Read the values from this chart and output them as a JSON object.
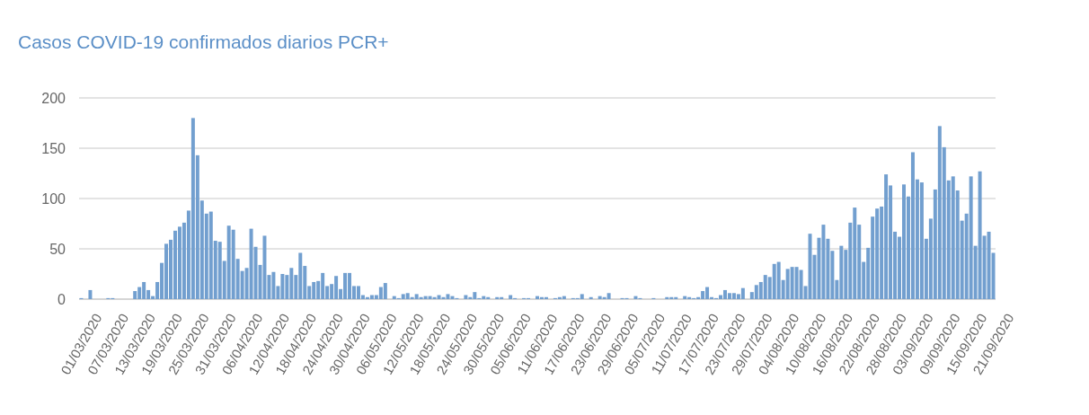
{
  "chart_data": {
    "type": "bar",
    "title": "Casos COVID-19 confirmados diarios PCR+",
    "categories": [
      "01/03/2020",
      null,
      null,
      null,
      null,
      null,
      "07/03/2020",
      null,
      null,
      null,
      null,
      null,
      "13/03/2020",
      null,
      null,
      null,
      null,
      null,
      "19/03/2020",
      null,
      null,
      null,
      null,
      null,
      "25/03/2020",
      null,
      null,
      null,
      null,
      null,
      "31/03/2020",
      null,
      null,
      null,
      null,
      null,
      "06/04/2020",
      null,
      null,
      null,
      null,
      null,
      "12/04/2020",
      null,
      null,
      null,
      null,
      null,
      "18/04/2020",
      null,
      null,
      null,
      null,
      null,
      "24/04/2020",
      null,
      null,
      null,
      null,
      null,
      "30/04/2020",
      null,
      null,
      null,
      null,
      null,
      "06/05/2020",
      null,
      null,
      null,
      null,
      null,
      "12/05/2020",
      null,
      null,
      null,
      null,
      null,
      "18/05/2020",
      null,
      null,
      null,
      null,
      null,
      "24/05/2020",
      null,
      null,
      null,
      null,
      null,
      "30/05/2020",
      null,
      null,
      null,
      null,
      null,
      "05/06/2020",
      null,
      null,
      null,
      null,
      null,
      "11/06/2020",
      null,
      null,
      null,
      null,
      null,
      "17/06/2020",
      null,
      null,
      null,
      null,
      null,
      "23/06/2020",
      null,
      null,
      null,
      null,
      null,
      "29/06/2020",
      null,
      null,
      null,
      null,
      null,
      "05/07/2020",
      null,
      null,
      null,
      null,
      null,
      "11/07/2020",
      null,
      null,
      null,
      null,
      null,
      "17/07/2020",
      null,
      null,
      null,
      null,
      null,
      "23/07/2020",
      null,
      null,
      null,
      null,
      null,
      "29/07/2020",
      null,
      null,
      null,
      null,
      null,
      "04/08/2020",
      null,
      null,
      null,
      null,
      null,
      "10/08/2020",
      null,
      null,
      null,
      null,
      null,
      "16/08/2020",
      null,
      null,
      null,
      null,
      null,
      "22/08/2020",
      null,
      null,
      null,
      null,
      null,
      "28/08/2020",
      null,
      null,
      null,
      null,
      null,
      "03/09/2020",
      null,
      null,
      null,
      null,
      null,
      "09/09/2020",
      null,
      null,
      null,
      null,
      null,
      "15/09/2020",
      null,
      null,
      null,
      null,
      null,
      "21/09/2020"
    ],
    "values": [
      1,
      0,
      9,
      0,
      0,
      0,
      1,
      1,
      0,
      0,
      0,
      0,
      8,
      12,
      17,
      9,
      3,
      17,
      36,
      55,
      59,
      68,
      72,
      76,
      88,
      180,
      143,
      98,
      85,
      87,
      58,
      57,
      38,
      73,
      69,
      40,
      28,
      31,
      70,
      52,
      34,
      63,
      24,
      27,
      13,
      25,
      24,
      31,
      24,
      46,
      33,
      13,
      17,
      18,
      26,
      13,
      15,
      23,
      10,
      26,
      26,
      13,
      13,
      4,
      2,
      4,
      4,
      12,
      16,
      0,
      3,
      1,
      5,
      6,
      2,
      5,
      2,
      3,
      3,
      2,
      4,
      2,
      5,
      3,
      1,
      0,
      4,
      2,
      7,
      1,
      3,
      2,
      0,
      2,
      2,
      0,
      4,
      1,
      0,
      1,
      1,
      0,
      3,
      2,
      2,
      0,
      1,
      2,
      3,
      0,
      1,
      1,
      5,
      0,
      2,
      0,
      3,
      2,
      6,
      0,
      0,
      1,
      1,
      0,
      3,
      1,
      0,
      0,
      1,
      0,
      0,
      2,
      2,
      2,
      0,
      3,
      2,
      1,
      2,
      8,
      12,
      2,
      1,
      4,
      9,
      6,
      6,
      5,
      11,
      0,
      7,
      14,
      17,
      24,
      22,
      35,
      37,
      19,
      30,
      32,
      32,
      29,
      13,
      65,
      44,
      61,
      74,
      60,
      48,
      19,
      53,
      49,
      76,
      91,
      74,
      37,
      51,
      82,
      90,
      92,
      124,
      113,
      67,
      62,
      114,
      102,
      146,
      119,
      116,
      60,
      80,
      109,
      172,
      151,
      118,
      122,
      108,
      78,
      85,
      122,
      53,
      127,
      63,
      67,
      46
    ],
    "color": "#729fcf",
    "ylim": [
      0,
      200
    ],
    "yticks": [
      0,
      50,
      100,
      150,
      200
    ],
    "grid": "y"
  }
}
